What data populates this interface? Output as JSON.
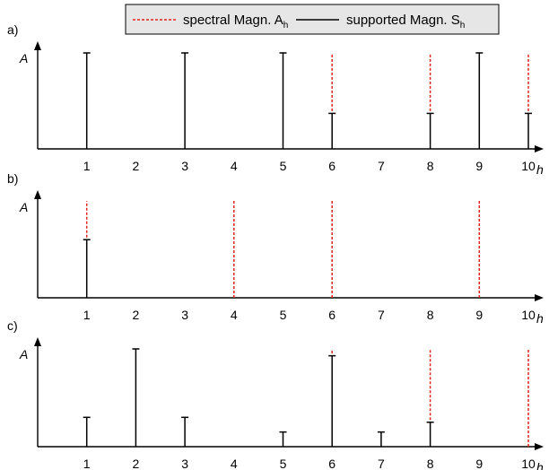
{
  "legend": {
    "entries": [
      {
        "label": "spectral Magn. A",
        "sub": "h",
        "color": "#e2231a",
        "style": "dashed"
      },
      {
        "label": "supported Magn. S",
        "sub": "h",
        "color": "#000000",
        "style": "solid"
      }
    ]
  },
  "chart_data": [
    {
      "type": "bar",
      "panel_label": "a)",
      "xlabel": "h",
      "ylabel": "A",
      "categories": [
        "1",
        "2",
        "3",
        "4",
        "5",
        "6",
        "7",
        "8",
        "9",
        "10"
      ],
      "xlim": [
        0,
        10.6
      ],
      "ylim": [
        0,
        1.0
      ],
      "series": [
        {
          "name": "spectral Magn. A_h",
          "x": [
            1,
            3,
            5,
            6,
            8,
            9,
            10
          ],
          "values": [
            1.0,
            1.0,
            1.0,
            1.0,
            1.0,
            1.0,
            1.0
          ]
        },
        {
          "name": "supported Magn. S_h",
          "x": [
            1,
            3,
            5,
            6,
            8,
            9,
            10
          ],
          "values": [
            1.0,
            1.0,
            1.0,
            0.37,
            0.37,
            1.0,
            0.37
          ]
        }
      ]
    },
    {
      "type": "bar",
      "panel_label": "b)",
      "xlabel": "h",
      "ylabel": "A",
      "categories": [
        "1",
        "2",
        "3",
        "4",
        "5",
        "6",
        "7",
        "8",
        "9",
        "10"
      ],
      "xlim": [
        0,
        10.6
      ],
      "ylim": [
        0,
        1.0
      ],
      "series": [
        {
          "name": "spectral Magn. A_h",
          "x": [
            1,
            4,
            6,
            9
          ],
          "values": [
            1.0,
            1.0,
            1.0,
            1.0
          ]
        },
        {
          "name": "supported Magn. S_h",
          "x": [
            1,
            4,
            6,
            9
          ],
          "values": [
            0.6,
            0,
            0,
            0
          ]
        }
      ]
    },
    {
      "type": "bar",
      "panel_label": "c)",
      "xlabel": "h",
      "ylabel": "A",
      "categories": [
        "1",
        "2",
        "3",
        "4",
        "5",
        "6",
        "7",
        "8",
        "9",
        "10"
      ],
      "xlim": [
        0,
        10.6
      ],
      "ylim": [
        0,
        1.0
      ],
      "series": [
        {
          "name": "spectral Magn. A_h",
          "x": [
            1,
            2,
            3,
            5,
            6,
            7,
            8,
            10
          ],
          "values": [
            0.3,
            1.0,
            0.3,
            0.15,
            1.0,
            0.15,
            1.0,
            1.0
          ]
        },
        {
          "name": "supported Magn. S_h",
          "x": [
            1,
            2,
            3,
            5,
            6,
            7,
            8,
            10
          ],
          "values": [
            0.3,
            1.0,
            0.3,
            0.15,
            0.93,
            0.15,
            0.25,
            0
          ]
        }
      ]
    }
  ]
}
